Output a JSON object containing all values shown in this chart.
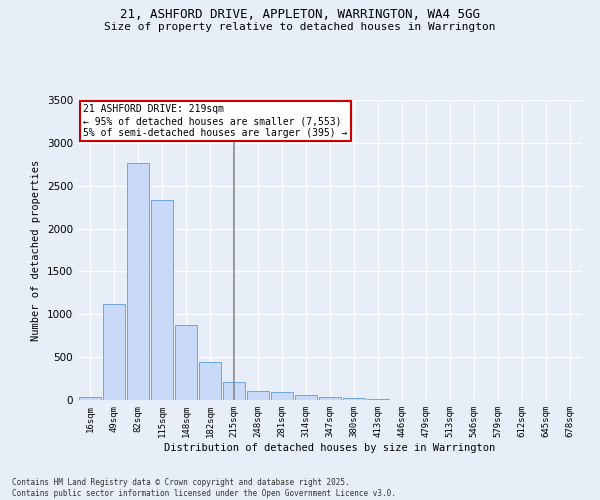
{
  "title_line1": "21, ASHFORD DRIVE, APPLETON, WARRINGTON, WA4 5GG",
  "title_line2": "Size of property relative to detached houses in Warrington",
  "xlabel": "Distribution of detached houses by size in Warrington",
  "ylabel": "Number of detached properties",
  "categories": [
    "16sqm",
    "49sqm",
    "82sqm",
    "115sqm",
    "148sqm",
    "182sqm",
    "215sqm",
    "248sqm",
    "281sqm",
    "314sqm",
    "347sqm",
    "380sqm",
    "413sqm",
    "446sqm",
    "479sqm",
    "513sqm",
    "546sqm",
    "579sqm",
    "612sqm",
    "645sqm",
    "678sqm"
  ],
  "values": [
    40,
    1120,
    2760,
    2330,
    880,
    440,
    210,
    110,
    90,
    60,
    35,
    20,
    15,
    5,
    0,
    0,
    0,
    0,
    0,
    0,
    0
  ],
  "bar_color": "#c9daf8",
  "bar_edgecolor": "#6fa8dc",
  "vline_x": 6.0,
  "vline_color": "#888888",
  "background_color": "#e8eef8",
  "grid_color": "#ffffff",
  "annotation_title": "21 ASHFORD DRIVE: 219sqm",
  "annotation_line1": "← 95% of detached houses are smaller (7,553)",
  "annotation_line2": "5% of semi-detached houses are larger (395) →",
  "annotation_box_facecolor": "#ffffff",
  "annotation_box_edgecolor": "#cc0000",
  "footnote1": "Contains HM Land Registry data © Crown copyright and database right 2025.",
  "footnote2": "Contains public sector information licensed under the Open Government Licence v3.0.",
  "ylim": [
    0,
    3500
  ],
  "yticks": [
    0,
    500,
    1000,
    1500,
    2000,
    2500,
    3000,
    3500
  ]
}
